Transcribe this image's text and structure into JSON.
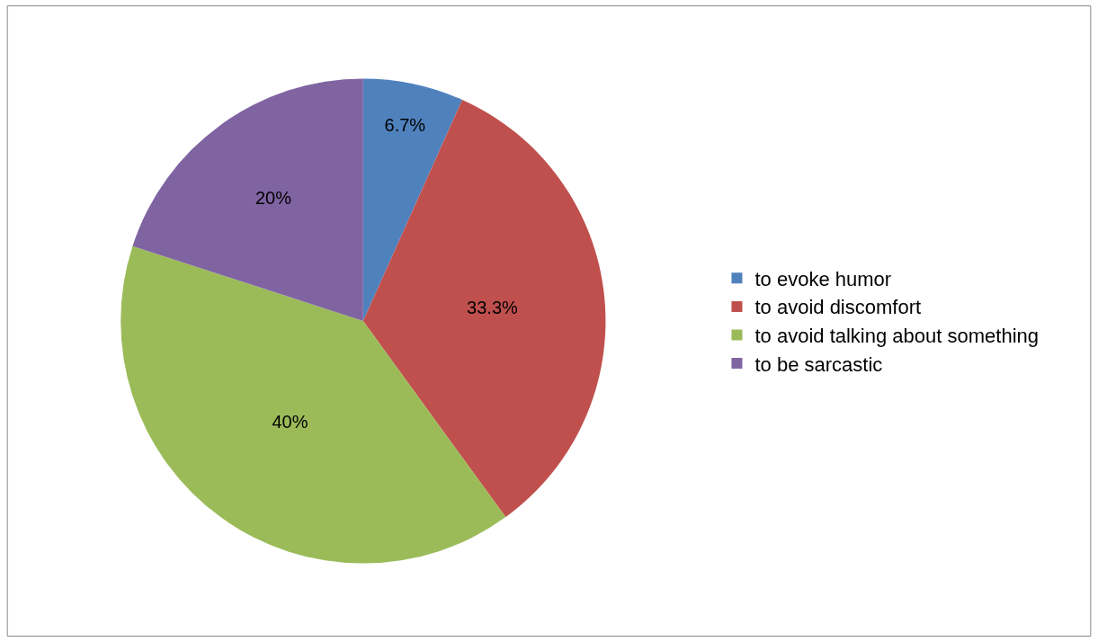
{
  "chart_data": {
    "type": "pie",
    "categories": [
      "to evoke humor",
      "to avoid discomfort",
      "to avoid talking about something",
      "to be sarcastic"
    ],
    "values": [
      6.7,
      33.3,
      40,
      20
    ],
    "colors": [
      "#4f81bd",
      "#c0504d",
      "#9bbb59",
      "#8064a2"
    ],
    "value_labels": [
      "6.7%",
      "33.3%",
      "40%",
      "20%"
    ],
    "legend": "right"
  }
}
